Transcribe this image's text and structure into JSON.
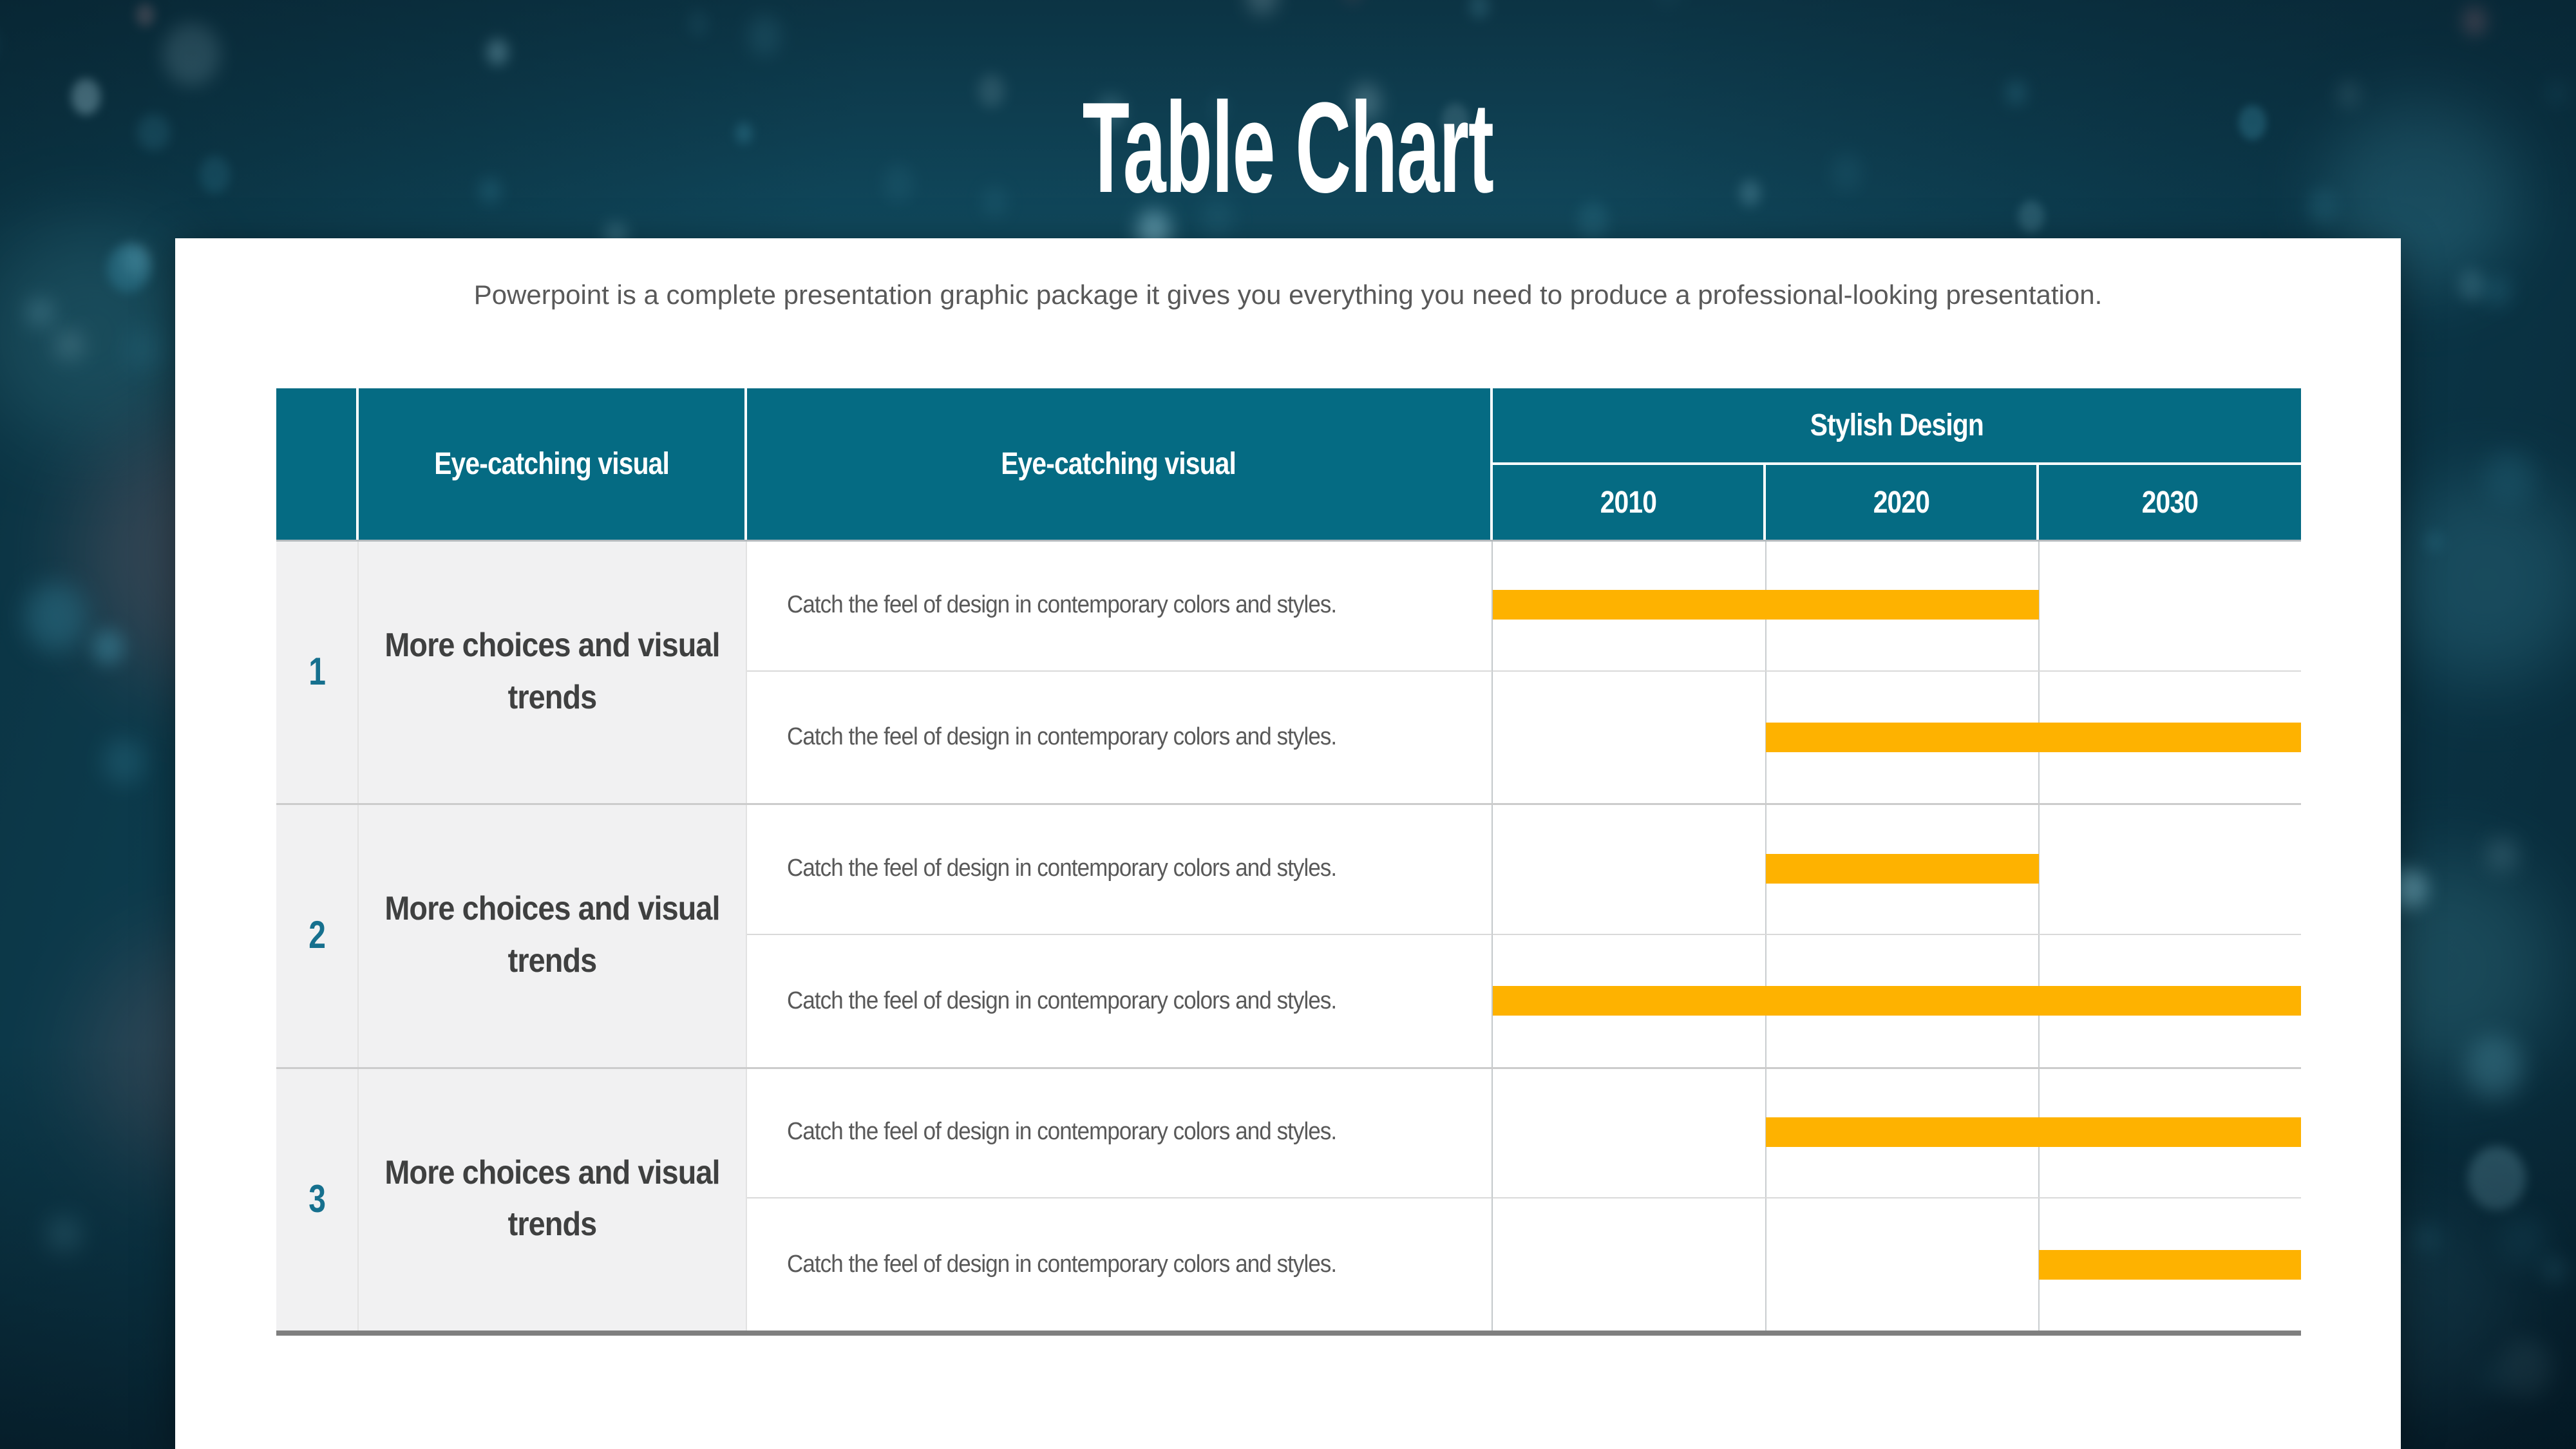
{
  "header": {
    "title": "Table Chart",
    "subtitle": "Powerpoint is a complete presentation graphic package it gives you everything you need to produce a professional-looking presentation."
  },
  "table": {
    "corner_label": "",
    "col2_header": "Eye-catching visual",
    "col3_header": "Eye-catching visual",
    "group_header": "Stylish Design"
  },
  "colors": {
    "header_teal": "#056B83",
    "number_teal": "#16708E",
    "bar_orange": "#FEB200"
  },
  "chart_data": {
    "type": "table",
    "subtype": "gantt",
    "title": "Table Chart",
    "year_columns": [
      "2010",
      "2020",
      "2030"
    ],
    "bar_color": "#FEB200",
    "legend_position": "none",
    "grid": true,
    "groups": [
      {
        "number": "1",
        "label": "More choices and visual trends",
        "rows": [
          {
            "description": "Catch the feel of design in contemporary colors and styles.",
            "bar": {
              "from": "2010",
              "to": "2020"
            }
          },
          {
            "description": "Catch the feel of design in contemporary colors and styles.",
            "bar": {
              "from": "2020",
              "to": "2030"
            }
          }
        ]
      },
      {
        "number": "2",
        "label": "More choices and visual trends",
        "rows": [
          {
            "description": "Catch the feel of design in contemporary colors and styles.",
            "bar": {
              "from": "2020",
              "to": "2020"
            }
          },
          {
            "description": "Catch the feel of design in contemporary colors and styles.",
            "bar": {
              "from": "2010",
              "to": "2030"
            }
          }
        ]
      },
      {
        "number": "3",
        "label": "More choices and visual trends",
        "rows": [
          {
            "description": "Catch the feel of design in contemporary colors and styles.",
            "bar": {
              "from": "2020",
              "to": "2030"
            }
          },
          {
            "description": "Catch the feel of design in contemporary colors and styles.",
            "bar": {
              "from": "2030",
              "to": "2030"
            }
          }
        ]
      }
    ]
  }
}
